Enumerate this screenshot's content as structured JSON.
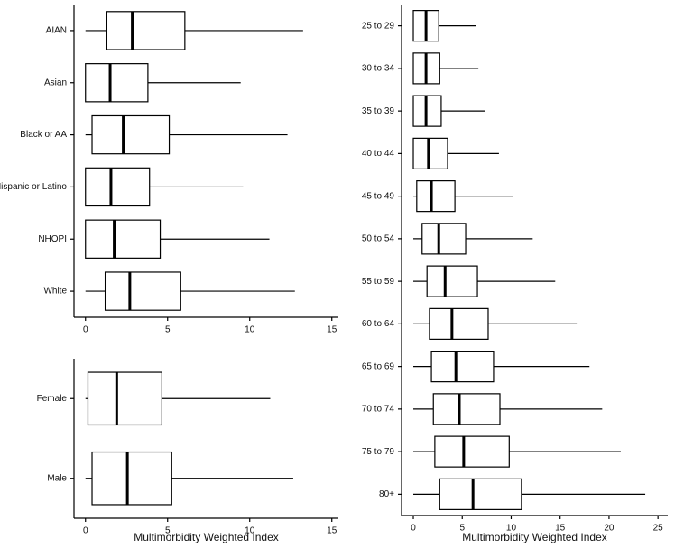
{
  "chart_data": [
    {
      "type": "boxplot",
      "categories": [
        "AIAN",
        "Asian",
        "Black or AA",
        "Hispanic or Latino",
        "NHOPI",
        "White"
      ],
      "min": [
        0,
        0,
        0,
        0,
        0,
        0
      ],
      "q1": [
        1.3,
        0,
        0.4,
        0,
        0,
        1.2
      ],
      "median": [
        2.85,
        1.5,
        2.3,
        1.55,
        1.75,
        2.7
      ],
      "q3": [
        6.05,
        3.8,
        5.1,
        3.9,
        4.55,
        5.8
      ],
      "max": [
        13.25,
        9.45,
        12.3,
        9.6,
        11.2,
        12.75
      ],
      "xlim": [
        -0.7,
        15.4
      ],
      "xticks": [
        0,
        5,
        10,
        15
      ]
    },
    {
      "type": "boxplot",
      "categories": [
        "Female",
        "Male"
      ],
      "min": [
        0,
        0
      ],
      "q1": [
        0.15,
        0.4
      ],
      "median": [
        1.9,
        2.55
      ],
      "q3": [
        4.65,
        5.25
      ],
      "max": [
        11.25,
        12.65
      ],
      "xlim": [
        -0.7,
        15.4
      ],
      "xticks": [
        0,
        5,
        10,
        15
      ],
      "xlabel": "Multimorbidity Weighted Index"
    },
    {
      "type": "boxplot",
      "categories": [
        "25 to 29",
        "30 to 34",
        "35 to 39",
        "40 to 44",
        "45 to 49",
        "50 to 54",
        "55 to 59",
        "60 to 64",
        "65 to 69",
        "70 to 74",
        "75 to 79",
        "80+"
      ],
      "min": [
        0,
        0,
        0,
        0,
        0,
        0,
        0,
        0,
        0,
        0,
        0,
        0
      ],
      "q1": [
        0,
        0,
        0,
        0,
        0.35,
        0.9,
        1.4,
        1.65,
        1.85,
        2.05,
        2.2,
        2.7
      ],
      "median": [
        1.3,
        1.3,
        1.3,
        1.55,
        1.85,
        2.6,
        3.25,
        3.95,
        4.35,
        4.7,
        5.15,
        6.1
      ],
      "q3": [
        2.6,
        2.7,
        2.85,
        3.5,
        4.25,
        5.35,
        6.55,
        7.65,
        8.2,
        8.85,
        9.8,
        11.05
      ],
      "max": [
        6.45,
        6.65,
        7.3,
        8.75,
        10.15,
        12.2,
        14.5,
        16.7,
        18.0,
        19.3,
        21.2,
        23.7
      ],
      "xlim": [
        -1.2,
        26
      ],
      "xticks": [
        0,
        5,
        10,
        15,
        20,
        25
      ],
      "xlabel": "Multimorbidity Weighted Index"
    }
  ]
}
